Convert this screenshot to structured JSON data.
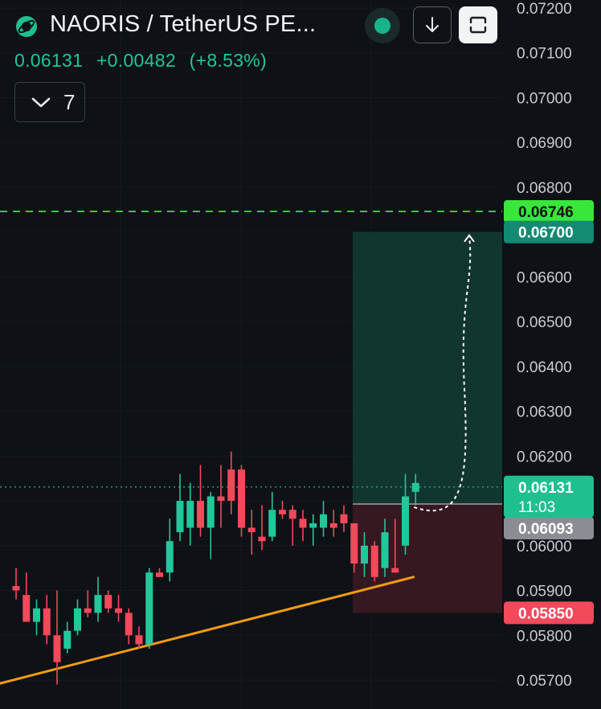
{
  "header": {
    "symbol_title": "NAORIS / TetherUS PE...",
    "last_price": "0.06131",
    "change_abs": "+0.00482",
    "change_pct": "(+8.53%)",
    "collapse_count": "7",
    "icons": {
      "logo": "naoris-planet-icon",
      "status": "market-open-dot-icon",
      "download": "arrow-down-icon",
      "fullscreen": "fullscreen-icon"
    }
  },
  "colors": {
    "background": "#0e1116",
    "up": "#22c79a",
    "down": "#f2495b",
    "trendline": "#f39c12",
    "target_line": "#39e63c",
    "profit_zone": "#123b33",
    "loss_zone": "#3b1a22"
  },
  "chart_data": {
    "type": "candlestick",
    "y_axis": {
      "range": [
        0.0567,
        0.0722
      ],
      "tick_labels": [
        "0.07200",
        "0.07100",
        "0.07000",
        "0.06900",
        "0.06800",
        "0.06600",
        "0.06500",
        "0.06400",
        "0.06300",
        "0.06200",
        "0.06000",
        "0.05900",
        "0.05800",
        "0.05700"
      ]
    },
    "candles": [
      {
        "o": 0.0591,
        "h": 0.0595,
        "l": 0.0588,
        "c": 0.059
      },
      {
        "o": 0.0589,
        "h": 0.0594,
        "l": 0.0583,
        "c": 0.0583
      },
      {
        "o": 0.0583,
        "h": 0.0588,
        "l": 0.058,
        "c": 0.0586
      },
      {
        "o": 0.0586,
        "h": 0.0589,
        "l": 0.0578,
        "c": 0.058
      },
      {
        "o": 0.058,
        "h": 0.059,
        "l": 0.0569,
        "c": 0.0574
      },
      {
        "o": 0.0577,
        "h": 0.0583,
        "l": 0.0576,
        "c": 0.0581
      },
      {
        "o": 0.0581,
        "h": 0.0588,
        "l": 0.058,
        "c": 0.0586
      },
      {
        "o": 0.0586,
        "h": 0.059,
        "l": 0.0584,
        "c": 0.0585
      },
      {
        "o": 0.0585,
        "h": 0.0593,
        "l": 0.0583,
        "c": 0.0589
      },
      {
        "o": 0.0589,
        "h": 0.059,
        "l": 0.0585,
        "c": 0.0586
      },
      {
        "o": 0.0586,
        "h": 0.0589,
        "l": 0.0583,
        "c": 0.0585
      },
      {
        "o": 0.0585,
        "h": 0.0586,
        "l": 0.0578,
        "c": 0.058
      },
      {
        "o": 0.058,
        "h": 0.0582,
        "l": 0.0577,
        "c": 0.0578
      },
      {
        "o": 0.0578,
        "h": 0.0595,
        "l": 0.0577,
        "c": 0.0594
      },
      {
        "o": 0.0594,
        "h": 0.0595,
        "l": 0.0593,
        "c": 0.0593
      },
      {
        "o": 0.0594,
        "h": 0.0606,
        "l": 0.0592,
        "c": 0.0601
      },
      {
        "o": 0.0603,
        "h": 0.0616,
        "l": 0.0601,
        "c": 0.061
      },
      {
        "o": 0.0604,
        "h": 0.0614,
        "l": 0.06,
        "c": 0.061
      },
      {
        "o": 0.061,
        "h": 0.0618,
        "l": 0.0602,
        "c": 0.0604
      },
      {
        "o": 0.0604,
        "h": 0.0612,
        "l": 0.0597,
        "c": 0.0611
      },
      {
        "o": 0.0611,
        "h": 0.0618,
        "l": 0.0604,
        "c": 0.061
      },
      {
        "o": 0.0617,
        "h": 0.0621,
        "l": 0.0607,
        "c": 0.061
      },
      {
        "o": 0.0617,
        "h": 0.0618,
        "l": 0.0602,
        "c": 0.0604
      },
      {
        "o": 0.0604,
        "h": 0.0608,
        "l": 0.0598,
        "c": 0.0603
      },
      {
        "o": 0.0602,
        "h": 0.0609,
        "l": 0.0599,
        "c": 0.0601
      },
      {
        "o": 0.0602,
        "h": 0.0612,
        "l": 0.0601,
        "c": 0.0608
      },
      {
        "o": 0.0608,
        "h": 0.061,
        "l": 0.0606,
        "c": 0.0607
      },
      {
        "o": 0.0608,
        "h": 0.0609,
        "l": 0.06,
        "c": 0.0606
      },
      {
        "o": 0.0606,
        "h": 0.0608,
        "l": 0.0601,
        "c": 0.0604
      },
      {
        "o": 0.0604,
        "h": 0.0607,
        "l": 0.06,
        "c": 0.0605
      },
      {
        "o": 0.0604,
        "h": 0.061,
        "l": 0.0602,
        "c": 0.0607
      },
      {
        "o": 0.0605,
        "h": 0.0608,
        "l": 0.0602,
        "c": 0.0604
      },
      {
        "o": 0.0607,
        "h": 0.0609,
        "l": 0.0603,
        "c": 0.0605
      },
      {
        "o": 0.0605,
        "h": 0.0605,
        "l": 0.0594,
        "c": 0.0596
      },
      {
        "o": 0.0596,
        "h": 0.0603,
        "l": 0.0593,
        "c": 0.06
      },
      {
        "o": 0.06,
        "h": 0.0601,
        "l": 0.0592,
        "c": 0.0593
      },
      {
        "o": 0.0595,
        "h": 0.0606,
        "l": 0.0593,
        "c": 0.0603
      },
      {
        "o": 0.0595,
        "h": 0.0606,
        "l": 0.0594,
        "c": 0.0594
      },
      {
        "o": 0.06,
        "h": 0.0616,
        "l": 0.0598,
        "c": 0.0611
      },
      {
        "o": 0.0612,
        "h": 0.0616,
        "l": 0.0609,
        "c": 0.0614
      }
    ],
    "trendline": {
      "from": {
        "index": -2,
        "price": 0.0569
      },
      "to": {
        "index": 38.8,
        "price": 0.0593
      }
    },
    "target_price": 0.06746,
    "take_profit": 0.067,
    "entry": 0.06093,
    "stop_loss": 0.0585,
    "current_price": 0.06131,
    "price_labels": {
      "target": "0.06746",
      "take_profit": "0.06700",
      "current": "0.06131",
      "countdown": "11:03",
      "entry": "0.06093",
      "stop_loss": "0.05850"
    }
  }
}
